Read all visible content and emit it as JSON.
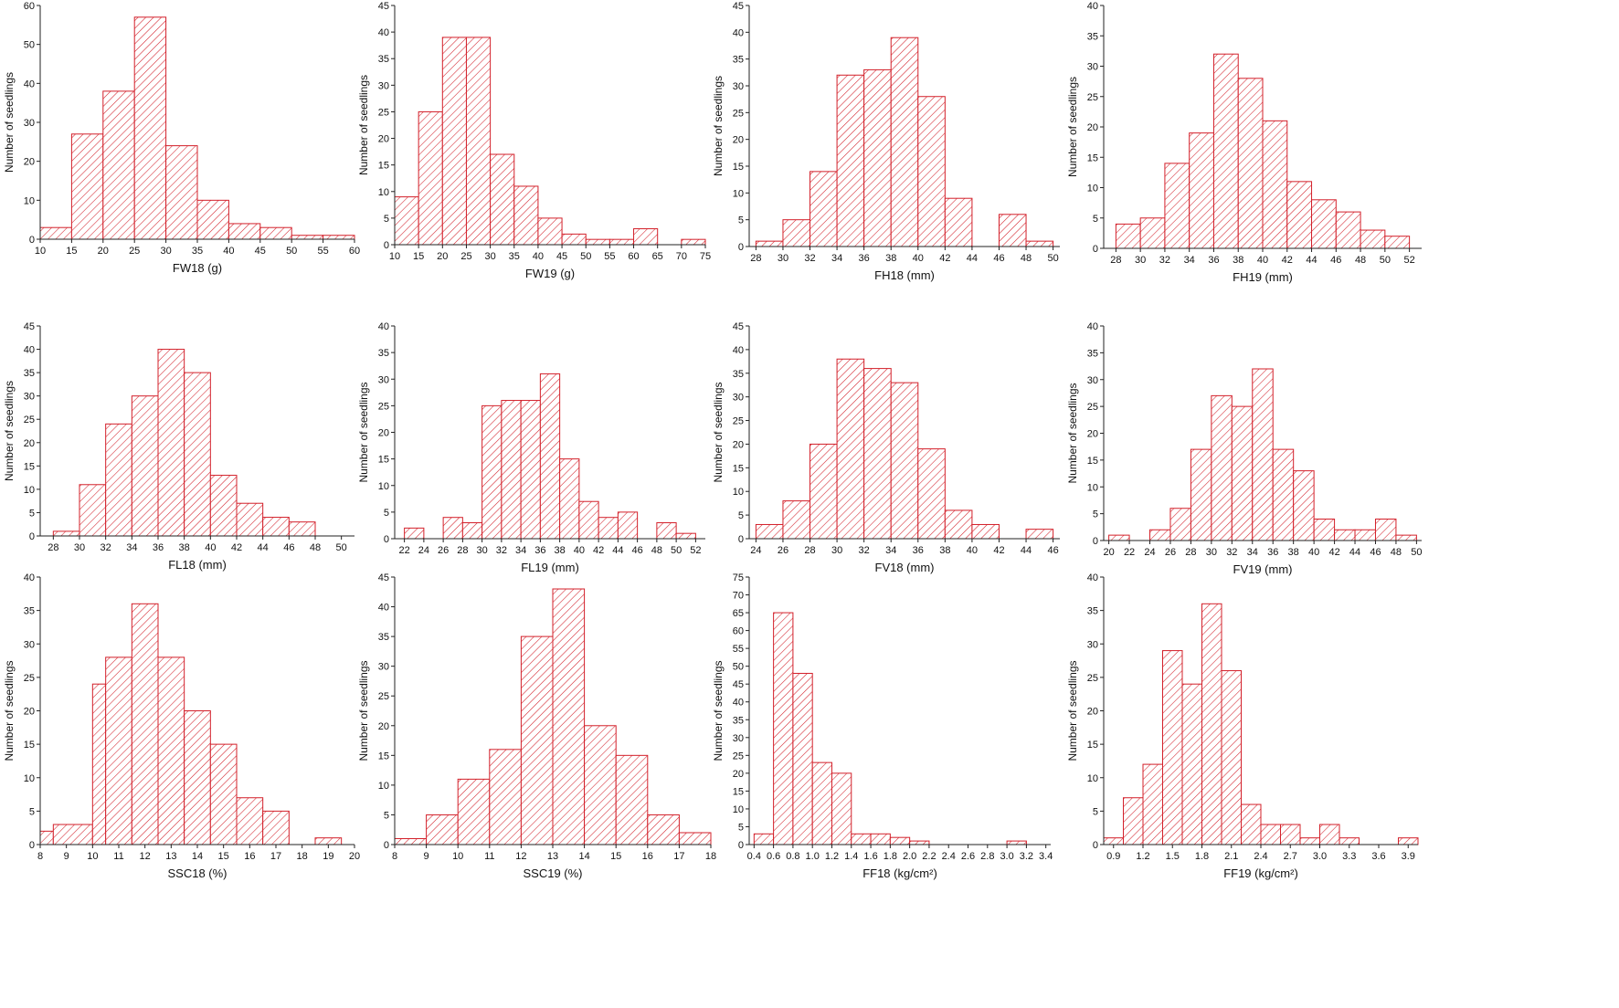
{
  "chart_data": [
    {
      "type": "bar",
      "xlabel": "FW18 (g)",
      "ylabel": "Number of seedlings",
      "xlim": [
        10,
        60
      ],
      "ylim": [
        0,
        60
      ],
      "yticks": [
        0,
        10,
        20,
        30,
        40,
        50,
        60
      ],
      "xticks": [
        10,
        15,
        20,
        25,
        30,
        35,
        40,
        45,
        50,
        55,
        60
      ],
      "xtick_labels": [
        "10",
        "15",
        "20",
        "25",
        "30",
        "35",
        "40",
        "45",
        "50",
        "55",
        "60"
      ],
      "bins": [
        [
          10,
          15,
          3
        ],
        [
          15,
          20,
          27
        ],
        [
          20,
          25,
          38
        ],
        [
          25,
          30,
          57
        ],
        [
          30,
          35,
          24
        ],
        [
          35,
          40,
          10
        ],
        [
          40,
          45,
          4
        ],
        [
          45,
          50,
          3
        ],
        [
          50,
          55,
          1
        ],
        [
          55,
          60,
          1
        ]
      ]
    },
    {
      "type": "bar",
      "xlabel": "FW19 (g)",
      "ylabel": "Number of seedlings",
      "xlim": [
        10,
        75
      ],
      "ylim": [
        0,
        45
      ],
      "yticks": [
        0,
        5,
        10,
        15,
        20,
        25,
        30,
        35,
        40,
        45
      ],
      "xticks": [
        10,
        15,
        20,
        25,
        30,
        35,
        40,
        45,
        50,
        55,
        60,
        65,
        70,
        75
      ],
      "xtick_labels": [
        "10",
        "15",
        "20",
        "25",
        "30",
        "35",
        "40",
        "45",
        "50",
        "55",
        "60",
        "65",
        "70",
        "75"
      ],
      "bins": [
        [
          10,
          15,
          9
        ],
        [
          15,
          20,
          25
        ],
        [
          20,
          25,
          39
        ],
        [
          25,
          30,
          39
        ],
        [
          30,
          35,
          17
        ],
        [
          35,
          40,
          11
        ],
        [
          40,
          45,
          5
        ],
        [
          45,
          50,
          2
        ],
        [
          50,
          55,
          1
        ],
        [
          55,
          60,
          1
        ],
        [
          60,
          65,
          3
        ],
        [
          70,
          75,
          1
        ]
      ]
    },
    {
      "type": "bar",
      "xlabel": "FH18 (mm)",
      "ylabel": "Number of seedlings",
      "xlim": [
        27.5,
        50.5
      ],
      "ylim": [
        0,
        45
      ],
      "yticks": [
        0,
        5,
        10,
        15,
        20,
        25,
        30,
        35,
        40,
        45
      ],
      "xticks": [
        28,
        30,
        32,
        34,
        36,
        38,
        40,
        42,
        44,
        46,
        48,
        50
      ],
      "xtick_labels": [
        "28",
        "30",
        "32",
        "34",
        "36",
        "38",
        "40",
        "42",
        "44",
        "46",
        "48",
        "50"
      ],
      "bins": [
        [
          28,
          30,
          1
        ],
        [
          30,
          32,
          5
        ],
        [
          32,
          34,
          14
        ],
        [
          34,
          36,
          32
        ],
        [
          36,
          38,
          33
        ],
        [
          38,
          40,
          39
        ],
        [
          40,
          42,
          28
        ],
        [
          42,
          44,
          9
        ],
        [
          46,
          48,
          6
        ],
        [
          48,
          50,
          1
        ]
      ]
    },
    {
      "type": "bar",
      "xlabel": "FH19 (mm)",
      "ylabel": "Number of seedlings",
      "xlim": [
        27,
        53
      ],
      "ylim": [
        0,
        40
      ],
      "yticks": [
        0,
        5,
        10,
        15,
        20,
        25,
        30,
        35,
        40
      ],
      "xticks": [
        28,
        30,
        32,
        34,
        36,
        38,
        40,
        42,
        44,
        46,
        48,
        50,
        52
      ],
      "xtick_labels": [
        "28",
        "30",
        "32",
        "34",
        "36",
        "38",
        "40",
        "42",
        "44",
        "46",
        "48",
        "50",
        "52"
      ],
      "bins": [
        [
          28,
          30,
          4
        ],
        [
          30,
          32,
          5
        ],
        [
          32,
          34,
          14
        ],
        [
          34,
          36,
          19
        ],
        [
          36,
          38,
          32
        ],
        [
          38,
          40,
          28
        ],
        [
          40,
          42,
          21
        ],
        [
          42,
          44,
          11
        ],
        [
          44,
          46,
          8
        ],
        [
          46,
          48,
          6
        ],
        [
          48,
          50,
          3
        ],
        [
          50,
          52,
          2
        ]
      ]
    },
    {
      "type": "bar",
      "xlabel": "FL18 (mm)",
      "ylabel": "Number of seedlings",
      "xlim": [
        27,
        51
      ],
      "ylim": [
        0,
        45
      ],
      "yticks": [
        0,
        5,
        10,
        15,
        20,
        25,
        30,
        35,
        40,
        45
      ],
      "xticks": [
        28,
        30,
        32,
        34,
        36,
        38,
        40,
        42,
        44,
        46,
        48,
        50
      ],
      "xtick_labels": [
        "28",
        "30",
        "32",
        "34",
        "36",
        "38",
        "40",
        "42",
        "44",
        "46",
        "48",
        "50"
      ],
      "bins": [
        [
          28,
          30,
          1
        ],
        [
          30,
          32,
          11
        ],
        [
          32,
          34,
          24
        ],
        [
          34,
          36,
          30
        ],
        [
          36,
          38,
          40
        ],
        [
          38,
          40,
          35
        ],
        [
          40,
          42,
          13
        ],
        [
          42,
          44,
          7
        ],
        [
          44,
          46,
          4
        ],
        [
          46,
          48,
          3
        ]
      ]
    },
    {
      "type": "bar",
      "xlabel": "FL19 (mm)",
      "ylabel": "Number of seedlings",
      "xlim": [
        21,
        53
      ],
      "ylim": [
        0,
        40
      ],
      "yticks": [
        0,
        5,
        10,
        15,
        20,
        25,
        30,
        35,
        40
      ],
      "xticks": [
        22,
        24,
        26,
        28,
        30,
        32,
        34,
        36,
        38,
        40,
        42,
        44,
        46,
        48,
        50,
        52
      ],
      "xtick_labels": [
        "22",
        "24",
        "26",
        "28",
        "30",
        "32",
        "34",
        "36",
        "38",
        "40",
        "42",
        "44",
        "46",
        "48",
        "50",
        "52"
      ],
      "bins": [
        [
          22,
          24,
          2
        ],
        [
          26,
          28,
          4
        ],
        [
          28,
          30,
          3
        ],
        [
          30,
          32,
          25
        ],
        [
          32,
          34,
          26
        ],
        [
          34,
          36,
          26
        ],
        [
          36,
          38,
          31
        ],
        [
          38,
          40,
          15
        ],
        [
          40,
          42,
          7
        ],
        [
          42,
          44,
          4
        ],
        [
          44,
          46,
          5
        ],
        [
          48,
          50,
          3
        ],
        [
          50,
          52,
          1
        ]
      ]
    },
    {
      "type": "bar",
      "xlabel": "FV18 (mm)",
      "ylabel": "Number of seedlings",
      "xlim": [
        23.5,
        46.5
      ],
      "ylim": [
        0,
        45
      ],
      "yticks": [
        0,
        5,
        10,
        15,
        20,
        25,
        30,
        35,
        40,
        45
      ],
      "xticks": [
        24,
        26,
        28,
        30,
        32,
        34,
        36,
        38,
        40,
        42,
        44,
        46
      ],
      "xtick_labels": [
        "24",
        "26",
        "28",
        "30",
        "32",
        "34",
        "36",
        "38",
        "40",
        "42",
        "44",
        "46"
      ],
      "bins": [
        [
          24,
          26,
          3
        ],
        [
          26,
          28,
          8
        ],
        [
          28,
          30,
          20
        ],
        [
          30,
          32,
          38
        ],
        [
          32,
          34,
          36
        ],
        [
          34,
          36,
          33
        ],
        [
          36,
          38,
          19
        ],
        [
          38,
          40,
          6
        ],
        [
          40,
          42,
          3
        ],
        [
          44,
          46,
          2
        ]
      ]
    },
    {
      "type": "bar",
      "xlabel": "FV19 (mm)",
      "ylabel": "Number of seedlings",
      "xlim": [
        19.5,
        50.5
      ],
      "ylim": [
        0,
        40
      ],
      "yticks": [
        0,
        5,
        10,
        15,
        20,
        25,
        30,
        35,
        40
      ],
      "xticks": [
        20,
        22,
        24,
        26,
        28,
        30,
        32,
        34,
        36,
        38,
        40,
        42,
        44,
        46,
        48,
        50
      ],
      "xtick_labels": [
        "20",
        "22",
        "24",
        "26",
        "28",
        "30",
        "32",
        "34",
        "36",
        "38",
        "40",
        "42",
        "44",
        "46",
        "48",
        "50"
      ],
      "bins": [
        [
          20,
          22,
          1
        ],
        [
          24,
          26,
          2
        ],
        [
          26,
          28,
          6
        ],
        [
          28,
          30,
          17
        ],
        [
          30,
          32,
          27
        ],
        [
          32,
          34,
          25
        ],
        [
          34,
          36,
          32
        ],
        [
          36,
          38,
          17
        ],
        [
          38,
          40,
          13
        ],
        [
          40,
          42,
          4
        ],
        [
          42,
          44,
          2
        ],
        [
          44,
          46,
          2
        ],
        [
          46,
          48,
          4
        ],
        [
          48,
          50,
          1
        ]
      ]
    },
    {
      "type": "bar",
      "xlabel": "SSC18 (%)",
      "ylabel": "Number of seedlings",
      "xlim": [
        8,
        20
      ],
      "ylim": [
        0,
        40
      ],
      "yticks": [
        0,
        5,
        10,
        15,
        20,
        25,
        30,
        35,
        40
      ],
      "xticks": [
        8,
        9,
        10,
        11,
        12,
        13,
        14,
        15,
        16,
        17,
        18,
        19,
        20
      ],
      "xtick_labels": [
        "8",
        "9",
        "10",
        "11",
        "12",
        "13",
        "14",
        "15",
        "16",
        "17",
        "18",
        "19",
        "20"
      ],
      "bins": [
        [
          8,
          8.5,
          2
        ],
        [
          8.5,
          10,
          3
        ],
        [
          10,
          10.5,
          24
        ],
        [
          10.5,
          11.5,
          28
        ],
        [
          11.5,
          12.5,
          36
        ],
        [
          12.5,
          13.5,
          28
        ],
        [
          13.5,
          14.5,
          20
        ],
        [
          14.5,
          15.5,
          15
        ],
        [
          15.5,
          16.5,
          7
        ],
        [
          16.5,
          17.5,
          5
        ],
        [
          18.5,
          19.5,
          1
        ]
      ]
    },
    {
      "type": "bar",
      "xlabel": "SSC19 (%)",
      "ylabel": "Number of seedlings",
      "xlim": [
        8,
        18
      ],
      "ylim": [
        0,
        45
      ],
      "yticks": [
        0,
        5,
        10,
        15,
        20,
        25,
        30,
        35,
        40,
        45
      ],
      "xticks": [
        8,
        9,
        10,
        11,
        12,
        13,
        14,
        15,
        16,
        17,
        18
      ],
      "xtick_labels": [
        "8",
        "9",
        "10",
        "11",
        "12",
        "13",
        "14",
        "15",
        "16",
        "17",
        "18"
      ],
      "bins": [
        [
          8,
          9,
          1
        ],
        [
          9,
          10,
          5
        ],
        [
          10,
          11,
          11
        ],
        [
          11,
          12,
          16
        ],
        [
          12,
          13,
          35
        ],
        [
          13,
          14,
          43
        ],
        [
          14,
          15,
          20
        ],
        [
          15,
          16,
          15
        ],
        [
          16,
          17,
          5
        ],
        [
          17,
          18,
          2
        ]
      ]
    },
    {
      "type": "bar",
      "xlabel": "FF18 (kg/cm²)",
      "ylabel": "Number of seedlings",
      "xlim": [
        0.35,
        3.45
      ],
      "ylim": [
        0,
        75
      ],
      "yticks": [
        0,
        5,
        10,
        15,
        20,
        25,
        30,
        35,
        40,
        45,
        50,
        55,
        60,
        65,
        70,
        75
      ],
      "xticks": [
        0.4,
        0.6,
        0.8,
        1.0,
        1.2,
        1.4,
        1.6,
        1.8,
        2.0,
        2.2,
        2.4,
        2.6,
        2.8,
        3.0,
        3.2,
        3.4
      ],
      "xtick_labels": [
        "0.4",
        "0.6",
        "0.8",
        "1.0",
        "1.2",
        "1.4",
        "1.6",
        "1.8",
        "2.0",
        "2.2",
        "2.4",
        "2.6",
        "2.8",
        "3.0",
        "3.2",
        "3.4"
      ],
      "bins": [
        [
          0.4,
          0.6,
          3
        ],
        [
          0.6,
          0.8,
          65
        ],
        [
          0.8,
          1.0,
          48
        ],
        [
          1.0,
          1.2,
          23
        ],
        [
          1.2,
          1.4,
          20
        ],
        [
          1.4,
          1.6,
          3
        ],
        [
          1.6,
          1.8,
          3
        ],
        [
          1.8,
          2.0,
          2
        ],
        [
          2.0,
          2.2,
          1
        ],
        [
          3.0,
          3.2,
          1
        ]
      ]
    },
    {
      "type": "bar",
      "xlabel": "FF19 (kg/cm²)",
      "ylabel": "Number of seedlings",
      "xlim": [
        0.8,
        4.0
      ],
      "ylim": [
        0,
        40
      ],
      "yticks": [
        0,
        5,
        10,
        15,
        20,
        25,
        30,
        35,
        40
      ],
      "xticks": [
        0.9,
        1.2,
        1.5,
        1.8,
        2.1,
        2.4,
        2.7,
        3.0,
        3.3,
        3.6,
        3.9
      ],
      "xtick_labels": [
        "0.9",
        "1.2",
        "1.5",
        "1.8",
        "2.1",
        "2.4",
        "2.7",
        "3.0",
        "3.3",
        "3.6",
        "3.9"
      ],
      "bins": [
        [
          0.8,
          1.0,
          1
        ],
        [
          1.0,
          1.2,
          7
        ],
        [
          1.2,
          1.4,
          12
        ],
        [
          1.4,
          1.6,
          29
        ],
        [
          1.6,
          1.8,
          24
        ],
        [
          1.8,
          2.0,
          36
        ],
        [
          2.0,
          2.2,
          26
        ],
        [
          2.2,
          2.4,
          6
        ],
        [
          2.4,
          2.6,
          3
        ],
        [
          2.6,
          2.8,
          3
        ],
        [
          2.8,
          3.0,
          1
        ],
        [
          3.0,
          3.2,
          3
        ],
        [
          3.2,
          3.4,
          1
        ],
        [
          3.8,
          4.0,
          1
        ]
      ]
    }
  ],
  "style": {
    "bar_color": "#d3202a",
    "axis_color": "#222222"
  }
}
